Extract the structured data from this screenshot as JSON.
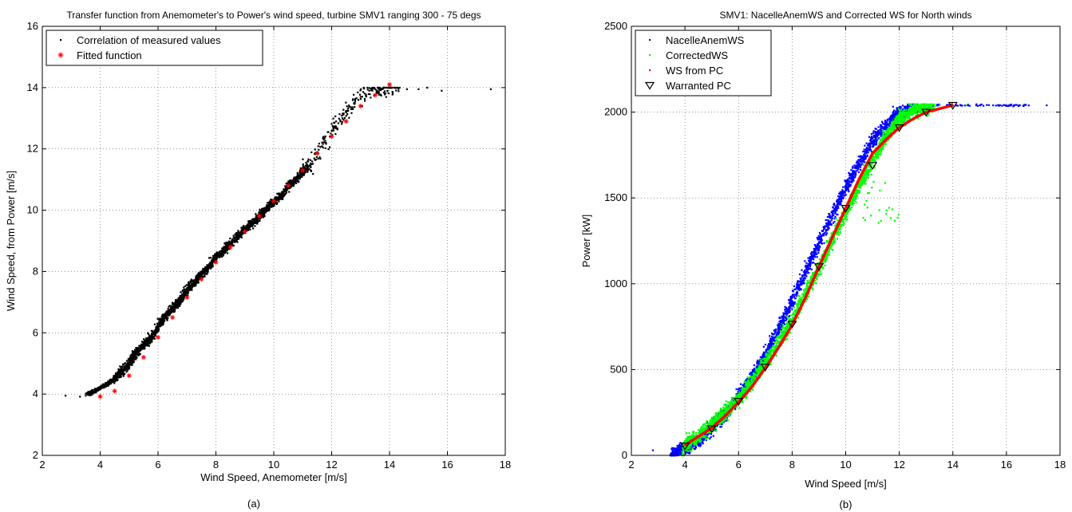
{
  "figure": {
    "panel_a_caption": "(a)",
    "panel_b_caption": "(b)"
  },
  "chart_data": [
    {
      "type": "scatter",
      "title": "Transfer function from Anemometer's to Power's wind speed, turbine SMV1 ranging 300 - 75 degs",
      "xlabel": "Wind Speed, Anemometer [m/s]",
      "ylabel": "Wind Speed, from Power [m/s]",
      "xlim": [
        2,
        18
      ],
      "ylim": [
        2,
        16
      ],
      "xticks": [
        2,
        4,
        6,
        8,
        10,
        12,
        14,
        16,
        18
      ],
      "yticks": [
        2,
        4,
        6,
        8,
        10,
        12,
        14,
        16
      ],
      "grid": true,
      "legend_position": "top-left",
      "series": [
        {
          "name": "Correlation of measured values",
          "marker": "dot",
          "color": "#000000",
          "description": "dense cloud of measurements",
          "x": [
            2.8,
            3.3,
            3.5,
            3.6,
            3.8,
            4.0,
            4.2,
            4.5,
            4.8,
            5.0,
            5.2,
            5.5,
            5.8,
            6.0,
            6.2,
            6.5,
            6.8,
            7.0,
            7.2,
            7.5,
            7.8,
            8.0,
            8.3,
            8.5,
            8.8,
            9.0,
            9.3,
            9.5,
            9.8,
            10.0,
            10.3,
            10.5,
            10.8,
            11.0,
            11.3,
            11.5,
            11.8,
            12.0,
            12.3,
            12.5,
            12.8,
            13.0,
            13.3,
            13.5,
            13.8,
            14.2,
            14.6,
            15.0,
            15.3,
            15.8,
            17.5
          ],
          "y": [
            3.95,
            3.92,
            3.95,
            4.0,
            4.1,
            4.2,
            4.3,
            4.5,
            4.8,
            5.0,
            5.3,
            5.6,
            5.9,
            6.2,
            6.5,
            6.8,
            7.1,
            7.4,
            7.6,
            7.9,
            8.2,
            8.5,
            8.7,
            8.9,
            9.2,
            9.4,
            9.6,
            9.8,
            10.1,
            10.3,
            10.5,
            10.8,
            11.0,
            11.3,
            11.5,
            11.9,
            12.2,
            12.6,
            12.9,
            13.2,
            13.5,
            13.7,
            13.9,
            13.95,
            14.0,
            14.0,
            13.95,
            13.95,
            14.0,
            13.9,
            13.95
          ]
        },
        {
          "name": "Fitted function",
          "marker": "star",
          "color": "#ff0000",
          "x": [
            4.0,
            4.5,
            5.0,
            5.5,
            6.0,
            6.5,
            7.0,
            7.5,
            8.0,
            8.5,
            9.0,
            9.5,
            10.0,
            10.5,
            11.0,
            11.5,
            12.0,
            12.5,
            13.0,
            13.5,
            14.0
          ],
          "y": [
            3.92,
            4.1,
            4.6,
            5.2,
            5.85,
            6.5,
            7.15,
            7.75,
            8.3,
            8.8,
            9.3,
            9.8,
            10.3,
            10.8,
            11.3,
            11.85,
            12.4,
            12.9,
            13.4,
            13.75,
            14.1
          ]
        }
      ]
    },
    {
      "type": "scatter",
      "title": "SMV1: NacelleAnemWS and Corrected WS for North winds",
      "xlabel": "Wind Speed [m/s]",
      "ylabel": "Power [kW]",
      "xlim": [
        2,
        18
      ],
      "ylim": [
        0,
        2500
      ],
      "xticks": [
        2,
        4,
        6,
        8,
        10,
        12,
        14,
        16,
        18
      ],
      "yticks": [
        0,
        500,
        1000,
        1500,
        2000,
        2500
      ],
      "grid": true,
      "legend_position": "top-left",
      "series": [
        {
          "name": "NacelleAnemWS",
          "marker": "dot",
          "color": "#0000ff",
          "description": "measured power vs nacelle anemometer wind speed (cloud)",
          "x": [
            2.8,
            3.5,
            4.0,
            4.5,
            5.0,
            5.5,
            6.0,
            6.5,
            7.0,
            7.5,
            8.0,
            8.5,
            9.0,
            9.5,
            10.0,
            10.5,
            11.0,
            11.5,
            12.0,
            12.5,
            13.0,
            13.5,
            14.0,
            14.5,
            15.0,
            15.5,
            16.0,
            16.5,
            17.5
          ],
          "y": [
            30,
            10,
            40,
            90,
            160,
            240,
            340,
            460,
            590,
            740,
            900,
            1070,
            1240,
            1400,
            1560,
            1700,
            1830,
            1930,
            2000,
            2030,
            2040,
            2040,
            2040,
            2040,
            2040,
            2040,
            2040,
            2040,
            2040
          ]
        },
        {
          "name": "CorrectedWS",
          "marker": "dot",
          "color": "#00ff00",
          "description": "measured power vs corrected wind speed (cloud)",
          "x": [
            3.9,
            4.0,
            4.5,
            5.0,
            5.5,
            6.0,
            6.5,
            7.0,
            7.5,
            8.0,
            8.5,
            9.0,
            9.5,
            10.0,
            10.5,
            11.0,
            11.5,
            12.0,
            12.5,
            13.0,
            13.5,
            14.0,
            14.5
          ],
          "y": [
            20,
            60,
            110,
            180,
            250,
            330,
            430,
            540,
            660,
            790,
            940,
            1090,
            1260,
            1420,
            1570,
            1720,
            1860,
            1960,
            2010,
            2030,
            2040,
            2040,
            2040
          ]
        },
        {
          "name": "WS from PC",
          "marker": "dot",
          "color": "#ff0000",
          "x": [
            4.0,
            4.5,
            5.0,
            5.5,
            6.0,
            6.5,
            7.0,
            7.5,
            8.0,
            8.5,
            9.0,
            9.5,
            10.0,
            10.5,
            11.0,
            11.5,
            12.0,
            12.5,
            13.0,
            13.5,
            14.0
          ],
          "y": [
            60,
            110,
            160,
            230,
            310,
            400,
            510,
            630,
            760,
            920,
            1100,
            1270,
            1440,
            1610,
            1760,
            1840,
            1910,
            1960,
            2000,
            2020,
            2040
          ]
        },
        {
          "name": "Warranted PC",
          "marker": "triangle-down",
          "color": "#000000",
          "x": [
            4,
            5,
            6,
            7,
            8,
            9,
            10,
            11,
            12,
            13,
            14
          ],
          "y": [
            55,
            155,
            315,
            515,
            765,
            1100,
            1440,
            1690,
            1910,
            2000,
            2040
          ]
        }
      ]
    }
  ]
}
